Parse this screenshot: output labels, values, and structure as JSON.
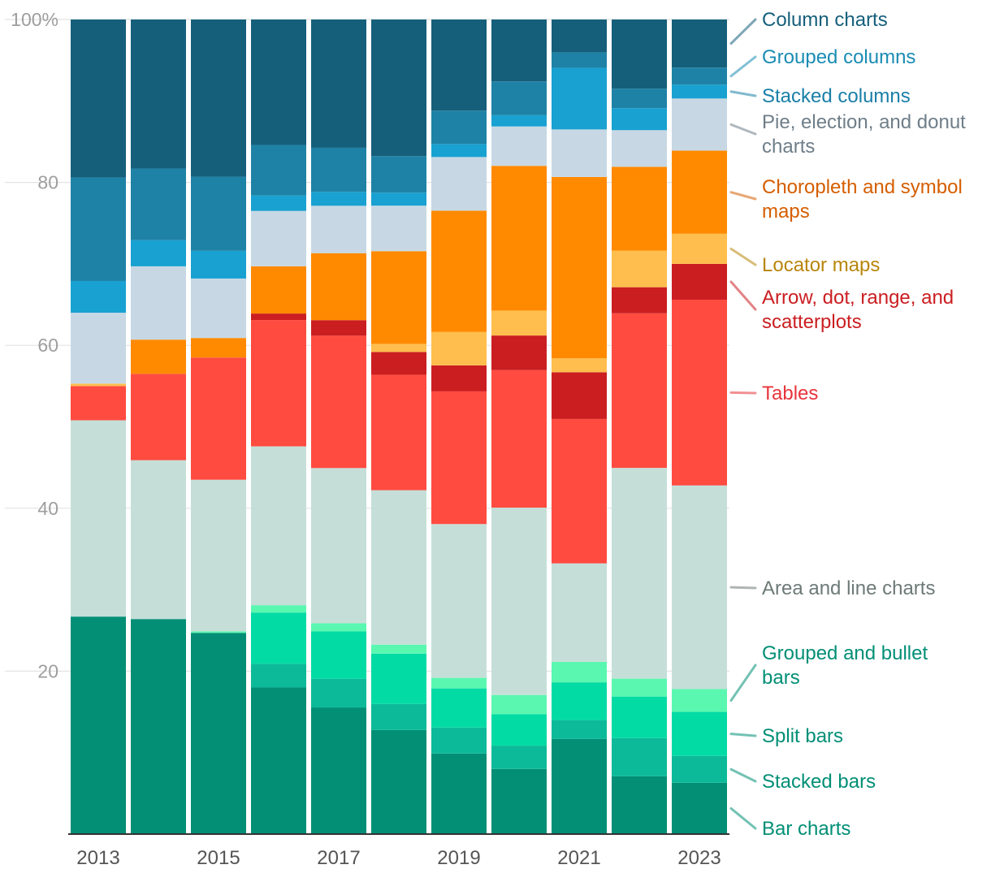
{
  "chart_data": {
    "type": "bar",
    "stacked": true,
    "normalized": true,
    "title": "",
    "xlabel": "",
    "ylabel": "",
    "ylim": [
      0,
      100
    ],
    "yticks": [
      20,
      40,
      60,
      80,
      100
    ],
    "ytick_labels": [
      "20",
      "40",
      "60",
      "80",
      "100%"
    ],
    "categories": [
      "2013",
      "2014",
      "2015",
      "2016",
      "2017",
      "2018",
      "2019",
      "2020",
      "2021",
      "2022",
      "2023"
    ],
    "x_tick_labels": [
      "2013",
      "",
      "2015",
      "",
      "2017",
      "",
      "2019",
      "",
      "2021",
      "",
      "2023"
    ],
    "legend_position": "right",
    "series": [
      {
        "name": "Bar charts",
        "legend": [
          "Bar charts"
        ],
        "color": "#028f76",
        "label_color": "#028f76",
        "values": [
          26.7,
          26.4,
          24.7,
          18.0,
          15.5,
          12.8,
          9.9,
          8.1,
          11.6,
          7.1,
          6.3
        ]
      },
      {
        "name": "Stacked bars",
        "legend": [
          "Stacked bars"
        ],
        "color": "#0cba99",
        "label_color": "#028f76",
        "values": [
          0,
          0,
          0,
          2.9,
          3.5,
          3.2,
          3.2,
          2.9,
          2.3,
          4.7,
          3.3
        ]
      },
      {
        "name": "Split bars",
        "legend": [
          "Split bars"
        ],
        "color": "#03dba5",
        "label_color": "#028f76",
        "values": [
          0,
          0,
          0,
          6.3,
          5.8,
          6.2,
          4.8,
          3.9,
          4.6,
          5.1,
          5.4
        ]
      },
      {
        "name": "Grouped and bullet bars",
        "legend": [
          "Grouped and bullet",
          "bars"
        ],
        "color": "#5af7b0",
        "label_color": "#028f76",
        "values": [
          0,
          0,
          0.2,
          0.9,
          1.0,
          1.1,
          1.3,
          2.4,
          2.5,
          2.2,
          2.8
        ]
      },
      {
        "name": "Area and line charts",
        "legend": [
          "Area and line charts"
        ],
        "color": "#c5dfd8",
        "label_color": "#6d7a78",
        "values": [
          24.1,
          19.5,
          18.6,
          19.5,
          19.0,
          19.0,
          18.9,
          23.3,
          12.0,
          25.9,
          25.0
        ]
      },
      {
        "name": "Tables",
        "legend": [
          "Tables"
        ],
        "color": "#ff4b40",
        "label_color": "#e8353b",
        "values": [
          4.2,
          10.6,
          15.0,
          15.5,
          16.2,
          14.2,
          16.3,
          17.1,
          17.6,
          19.0,
          22.8
        ]
      },
      {
        "name": "Arrow, dot, range, and scatterplots",
        "legend": [
          "Arrow, dot, range, and",
          "scatterplots"
        ],
        "color": "#cb1e21",
        "label_color": "#cb1e21",
        "values": [
          0,
          0,
          0,
          0.8,
          1.9,
          2.8,
          3.2,
          4.3,
          5.7,
          3.2,
          4.4
        ]
      },
      {
        "name": "Locator maps",
        "legend": [
          "Locator maps"
        ],
        "color": "#ffbe4d",
        "label_color": "#b8860b",
        "values": [
          0.3,
          0,
          0,
          0,
          0,
          1.0,
          4.1,
          3.1,
          1.7,
          4.5,
          3.7
        ]
      },
      {
        "name": "Choropleth and symbol maps",
        "legend": [
          "Choropleth and symbol",
          "maps"
        ],
        "color": "#ff8a00",
        "label_color": "#d55e00",
        "values": [
          0,
          4.2,
          2.4,
          5.8,
          8.2,
          11.4,
          14.9,
          18.0,
          22.1,
          10.3,
          10.2
        ]
      },
      {
        "name": "Pie, election, and donut charts",
        "legend": [
          "Pie, election, and donut",
          "charts"
        ],
        "color": "#c7d8e4",
        "label_color": "#6f7e88",
        "values": [
          8.7,
          9.0,
          7.3,
          6.8,
          5.8,
          5.6,
          6.6,
          4.9,
          5.8,
          4.5,
          6.4
        ]
      },
      {
        "name": "Stacked columns",
        "legend": [
          "Stacked columns"
        ],
        "color": "#18a1d1",
        "label_color": "#1a7fa8",
        "values": [
          3.9,
          3.2,
          3.4,
          1.9,
          1.7,
          1.6,
          1.6,
          1.4,
          7.5,
          2.7,
          1.7
        ]
      },
      {
        "name": "Grouped columns",
        "legend": [
          "Grouped columns"
        ],
        "color": "#1e82a6",
        "label_color": "#1a8cb3",
        "values": [
          12.7,
          8.8,
          9.1,
          6.2,
          5.4,
          4.5,
          4.1,
          4.2,
          1.9,
          2.4,
          2.1
        ]
      },
      {
        "name": "Column charts",
        "legend": [
          "Column charts"
        ],
        "color": "#155f7b",
        "label_color": "#155f7b",
        "values": [
          19.4,
          18.3,
          19.3,
          15.4,
          15.7,
          16.8,
          11.2,
          7.7,
          4.0,
          8.5,
          5.9
        ]
      }
    ]
  }
}
